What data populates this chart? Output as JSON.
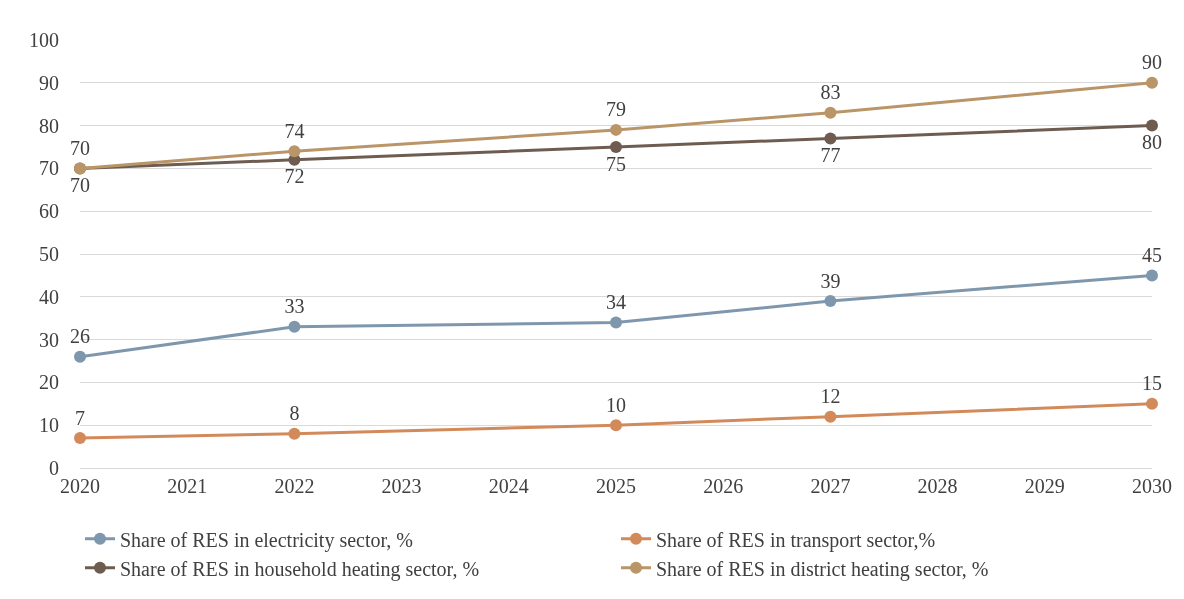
{
  "chart_data": {
    "type": "line",
    "x": [
      2020,
      2022,
      2025,
      2027,
      2030
    ],
    "series": [
      {
        "name": "Share of RES in electricity sector, %",
        "color": "#7f97ad",
        "values": [
          26,
          33,
          34,
          39,
          45
        ]
      },
      {
        "name": "Share of RES in transport sector,%",
        "color": "#d38a5a",
        "values": [
          7,
          8,
          10,
          12,
          15
        ]
      },
      {
        "name": "Share of RES in household heating sector, %",
        "color": "#6e5c50",
        "values": [
          70,
          72,
          75,
          77,
          80
        ]
      },
      {
        "name": "Share of RES in district heating sector, %",
        "color": "#b99568",
        "values": [
          70,
          74,
          79,
          83,
          90
        ]
      }
    ],
    "xlim": [
      2020,
      2030
    ],
    "xticks": [
      2020,
      2021,
      2022,
      2023,
      2024,
      2025,
      2026,
      2027,
      2028,
      2029,
      2030
    ],
    "ylim": [
      0,
      100
    ],
    "yticks": [
      0,
      10,
      20,
      30,
      40,
      50,
      60,
      70,
      80,
      90,
      100
    ],
    "grid": "y",
    "legend": "bottom",
    "marker": "circle",
    "line_style": "solid",
    "data_labels": true
  }
}
